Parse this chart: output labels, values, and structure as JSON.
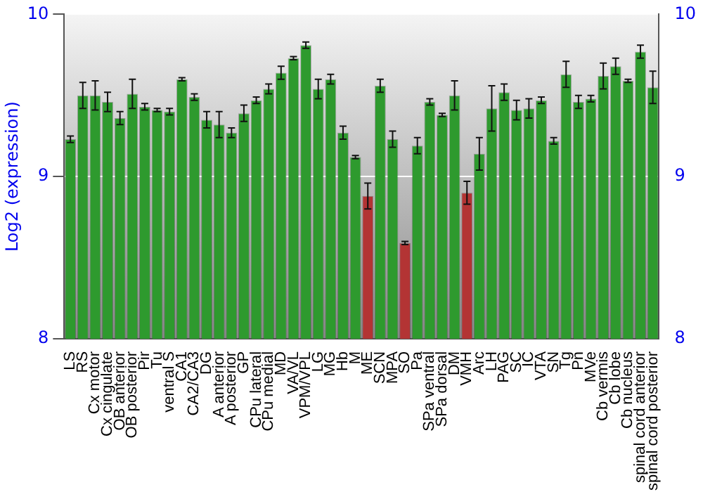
{
  "chart_data": {
    "type": "bar",
    "ylabel": "Log2 (expression)",
    "categories": [
      "LS",
      "RS",
      "Cx motor",
      "Cx cingulate",
      "OB anterior",
      "OB posterior",
      "Pir",
      "Tu",
      "ventral S",
      "CA1",
      "CA2/CA3",
      "DG",
      "A anterior",
      "A posterior",
      "GP",
      "CPu lateral",
      "CPu medial",
      "MD",
      "VA/VL",
      "VPM/VPL",
      "LG",
      "MG",
      "Hb",
      "M",
      "ME",
      "SCN",
      "MPA",
      "SO",
      "Pa",
      "SPa ventral",
      "SPa dorsal",
      "DM",
      "VMH",
      "Arc",
      "LH",
      "PAG",
      "SC",
      "IC",
      "VTA",
      "SN",
      "Tg",
      "Pn",
      "MVe",
      "Cb vermis",
      "Cb lobe",
      "Cb nucleus",
      "spinal cord anterior",
      "spinal cord posterior"
    ],
    "values": [
      9.23,
      9.5,
      9.5,
      9.46,
      9.36,
      9.51,
      9.43,
      9.41,
      9.4,
      9.6,
      9.49,
      9.35,
      9.32,
      9.27,
      9.39,
      9.47,
      9.54,
      9.64,
      9.73,
      9.81,
      9.54,
      9.6,
      9.27,
      9.12,
      8.88,
      9.56,
      9.23,
      8.59,
      9.19,
      9.46,
      9.38,
      9.5,
      8.9,
      9.14,
      9.42,
      9.52,
      9.41,
      9.42,
      9.47,
      9.22,
      9.63,
      9.46,
      9.48,
      9.62,
      9.68,
      9.59,
      9.77,
      9.55
    ],
    "errors": [
      0.02,
      0.08,
      0.09,
      0.06,
      0.04,
      0.09,
      0.02,
      0.01,
      0.02,
      0.01,
      0.02,
      0.05,
      0.08,
      0.03,
      0.05,
      0.02,
      0.03,
      0.04,
      0.01,
      0.02,
      0.06,
      0.03,
      0.04,
      0.01,
      0.08,
      0.04,
      0.05,
      0.01,
      0.05,
      0.02,
      0.01,
      0.09,
      0.07,
      0.1,
      0.14,
      0.05,
      0.06,
      0.06,
      0.02,
      0.02,
      0.08,
      0.04,
      0.02,
      0.08,
      0.05,
      0.01,
      0.04,
      0.1
    ],
    "colors": [
      "#2e9a2e",
      "#2e9a2e",
      "#2e9a2e",
      "#2e9a2e",
      "#2e9a2e",
      "#2e9a2e",
      "#2e9a2e",
      "#2e9a2e",
      "#2e9a2e",
      "#2e9a2e",
      "#2e9a2e",
      "#2e9a2e",
      "#2e9a2e",
      "#2e9a2e",
      "#2e9a2e",
      "#2e9a2e",
      "#2e9a2e",
      "#2e9a2e",
      "#2e9a2e",
      "#2e9a2e",
      "#2e9a2e",
      "#2e9a2e",
      "#2e9a2e",
      "#2e9a2e",
      "#b33434",
      "#2e9a2e",
      "#2e9a2e",
      "#b33434",
      "#2e9a2e",
      "#2e9a2e",
      "#2e9a2e",
      "#2e9a2e",
      "#b33434",
      "#2e9a2e",
      "#2e9a2e",
      "#2e9a2e",
      "#2e9a2e",
      "#2e9a2e",
      "#2e9a2e",
      "#2e9a2e",
      "#2e9a2e",
      "#2e9a2e",
      "#2e9a2e",
      "#2e9a2e",
      "#2e9a2e",
      "#2e9a2e",
      "#2e9a2e",
      "#2e9a2e"
    ],
    "ylim": [
      8,
      10
    ],
    "yticks": [
      8,
      9,
      10
    ],
    "y2lim": [
      8,
      10
    ],
    "y2ticks": [
      8,
      9,
      10
    ],
    "grid": "y",
    "legend": false
  }
}
